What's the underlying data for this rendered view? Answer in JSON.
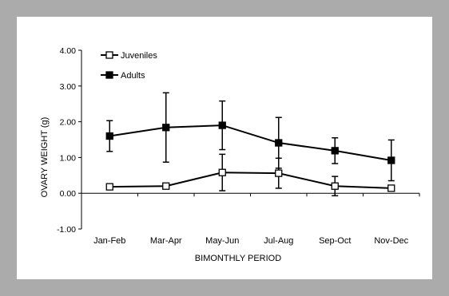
{
  "chart_data": {
    "type": "line",
    "title": "",
    "xlabel": "BIMONTHLY PERIOD",
    "ylabel": "OVARY WEIGHT (g)",
    "categories": [
      "Jan-Feb",
      "Mar-Apr",
      "May-Jun",
      "Jul-Aug",
      "Sep-Oct",
      "Nov-Dec"
    ],
    "ylim": [
      -1.0,
      4.0
    ],
    "yticks": [
      "-1.00",
      "0.00",
      "1.00",
      "2.00",
      "3.00",
      "4.00"
    ],
    "grid": false,
    "legend_position": "top-left",
    "series": [
      {
        "name": "Juveniles",
        "marker": "open-square",
        "color": "#000000",
        "values": [
          0.18,
          0.2,
          0.58,
          0.56,
          0.2,
          0.14
        ],
        "error": [
          null,
          null,
          0.51,
          0.42,
          0.27,
          null
        ]
      },
      {
        "name": "Adults",
        "marker": "filled-square",
        "color": "#000000",
        "values": [
          1.6,
          1.84,
          1.9,
          1.41,
          1.19,
          0.92
        ],
        "error": [
          0.43,
          0.97,
          0.68,
          0.71,
          0.36,
          0.57
        ]
      }
    ]
  }
}
